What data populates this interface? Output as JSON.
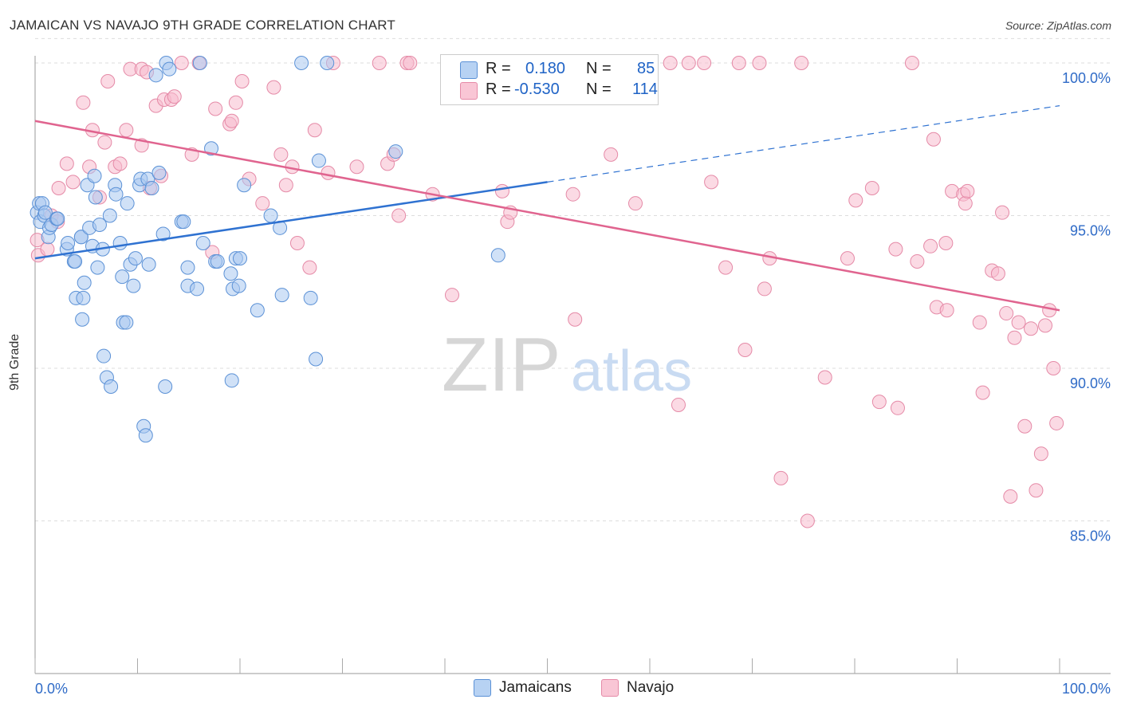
{
  "header": {
    "title": "JAMAICAN VS NAVAJO 9TH GRADE CORRELATION CHART",
    "source": "Source: ZipAtlas.com"
  },
  "watermark": {
    "zip": "ZIP",
    "atlas": "atlas"
  },
  "legend": {
    "rows": [
      {
        "r_label": "R =",
        "r_value": "0.180",
        "n_label": "N =",
        "n_value": "85",
        "color": "#a9c8f0"
      },
      {
        "r_label": "R =",
        "r_value": "-0.530",
        "n_label": "N =",
        "n_value": "114",
        "color": "#f7b7ca"
      }
    ]
  },
  "colors": {
    "jamaicans_fill": "#a9c8f0",
    "jamaicans_stroke": "#5b91d6",
    "jamaicans_line": "#2f72d1",
    "navajo_fill": "#f7bccd",
    "navajo_stroke": "#e58aa7",
    "navajo_line": "#e0648f",
    "axis_text": "#2f6bc7",
    "grid": "#dddddd"
  },
  "chart_data": {
    "type": "scatter",
    "title": "JAMAICAN VS NAVAJO 9TH GRADE CORRELATION CHART",
    "xlabel": "",
    "ylabel": "9th Grade",
    "xlim": [
      0,
      100
    ],
    "ylim": [
      80,
      100.8
    ],
    "x_tick_labels": [
      "0.0%",
      "100.0%"
    ],
    "y_ticks": [
      85,
      90,
      95,
      100
    ],
    "y_tick_labels": [
      "85.0%",
      "90.0%",
      "95.0%",
      "100.0%"
    ],
    "grid": "horizontal dashed",
    "legend_position": "top-center",
    "series": [
      {
        "name": "Jamaicans",
        "r": 0.18,
        "n": 85,
        "trend": {
          "x0": 0,
          "y0": 93.6,
          "x1": 50,
          "y1": 96.1,
          "dashed_to_x": 100,
          "dashed_to_y": 98.6
        },
        "points": [
          [
            0.2,
            95.1
          ],
          [
            0.4,
            95.4
          ],
          [
            0.5,
            94.8
          ],
          [
            0.7,
            95.4
          ],
          [
            0.9,
            95.0
          ],
          [
            1.0,
            95.1
          ],
          [
            1.3,
            94.3
          ],
          [
            1.4,
            94.6
          ],
          [
            1.6,
            94.7
          ],
          [
            2.1,
            94.9
          ],
          [
            2.2,
            94.9
          ],
          [
            3.1,
            93.9
          ],
          [
            3.2,
            94.1
          ],
          [
            3.8,
            93.5
          ],
          [
            3.9,
            93.5
          ],
          [
            4.0,
            92.3
          ],
          [
            4.5,
            94.3
          ],
          [
            4.5,
            94.3
          ],
          [
            4.6,
            91.6
          ],
          [
            4.7,
            92.3
          ],
          [
            4.8,
            92.8
          ],
          [
            5.1,
            96.0
          ],
          [
            5.3,
            94.6
          ],
          [
            5.6,
            94.0
          ],
          [
            5.8,
            96.3
          ],
          [
            5.9,
            95.6
          ],
          [
            6.1,
            93.3
          ],
          [
            6.3,
            94.7
          ],
          [
            6.6,
            93.9
          ],
          [
            6.7,
            90.4
          ],
          [
            7.0,
            89.7
          ],
          [
            7.3,
            95.0
          ],
          [
            7.4,
            89.4
          ],
          [
            7.8,
            96.0
          ],
          [
            7.9,
            95.7
          ],
          [
            8.3,
            94.1
          ],
          [
            8.5,
            93.0
          ],
          [
            8.6,
            91.5
          ],
          [
            8.9,
            91.5
          ],
          [
            9.0,
            95.4
          ],
          [
            9.3,
            93.4
          ],
          [
            9.6,
            92.7
          ],
          [
            9.8,
            93.6
          ],
          [
            10.2,
            96.0
          ],
          [
            10.3,
            96.2
          ],
          [
            10.6,
            88.1
          ],
          [
            10.8,
            87.8
          ],
          [
            11.0,
            96.2
          ],
          [
            11.1,
            93.4
          ],
          [
            11.4,
            95.9
          ],
          [
            11.8,
            99.6
          ],
          [
            12.1,
            96.4
          ],
          [
            12.5,
            94.4
          ],
          [
            12.7,
            89.4
          ],
          [
            12.8,
            100.0
          ],
          [
            13.1,
            99.8
          ],
          [
            14.3,
            94.8
          ],
          [
            14.5,
            94.8
          ],
          [
            14.9,
            93.3
          ],
          [
            14.9,
            92.7
          ],
          [
            15.8,
            92.6
          ],
          [
            16.1,
            100.0
          ],
          [
            16.4,
            94.1
          ],
          [
            17.2,
            97.2
          ],
          [
            17.6,
            93.5
          ],
          [
            17.8,
            93.5
          ],
          [
            19.1,
            93.1
          ],
          [
            19.2,
            89.6
          ],
          [
            19.3,
            92.6
          ],
          [
            19.6,
            93.6
          ],
          [
            19.9,
            92.7
          ],
          [
            20.0,
            93.6
          ],
          [
            20.4,
            96.0
          ],
          [
            21.7,
            91.9
          ],
          [
            23.0,
            95.0
          ],
          [
            23.9,
            94.6
          ],
          [
            24.1,
            92.4
          ],
          [
            26.0,
            100.0
          ],
          [
            26.9,
            92.3
          ],
          [
            27.4,
            90.3
          ],
          [
            27.7,
            96.8
          ],
          [
            28.5,
            100.0
          ],
          [
            35.2,
            97.1
          ],
          [
            40.5,
            100.0
          ],
          [
            45.2,
            93.7
          ]
        ]
      },
      {
        "name": "Navajo",
        "r": -0.53,
        "n": 114,
        "trend": {
          "x0": 0,
          "y0": 98.1,
          "x1": 100,
          "y1": 91.9
        },
        "points": [
          [
            0.2,
            94.2
          ],
          [
            0.3,
            93.7
          ],
          [
            1.2,
            93.9
          ],
          [
            1.6,
            95.0
          ],
          [
            2.2,
            94.8
          ],
          [
            2.3,
            95.9
          ],
          [
            3.1,
            96.7
          ],
          [
            3.7,
            96.1
          ],
          [
            4.7,
            98.7
          ],
          [
            5.3,
            96.6
          ],
          [
            5.6,
            97.8
          ],
          [
            6.3,
            95.6
          ],
          [
            6.8,
            97.4
          ],
          [
            7.1,
            99.4
          ],
          [
            7.8,
            96.6
          ],
          [
            8.3,
            96.7
          ],
          [
            8.9,
            97.8
          ],
          [
            9.3,
            99.8
          ],
          [
            10.4,
            97.3
          ],
          [
            10.4,
            99.8
          ],
          [
            10.9,
            99.7
          ],
          [
            11.2,
            95.9
          ],
          [
            11.8,
            98.6
          ],
          [
            12.3,
            96.3
          ],
          [
            12.6,
            98.8
          ],
          [
            13.3,
            98.8
          ],
          [
            13.6,
            98.9
          ],
          [
            14.3,
            100.0
          ],
          [
            15.3,
            97.0
          ],
          [
            16.0,
            100.0
          ],
          [
            17.3,
            93.8
          ],
          [
            17.6,
            98.5
          ],
          [
            19.0,
            98.0
          ],
          [
            19.2,
            98.1
          ],
          [
            19.6,
            98.7
          ],
          [
            20.2,
            99.4
          ],
          [
            20.9,
            96.2
          ],
          [
            22.2,
            95.4
          ],
          [
            23.3,
            99.2
          ],
          [
            24.0,
            97.0
          ],
          [
            24.5,
            96.0
          ],
          [
            25.1,
            96.6
          ],
          [
            25.6,
            94.1
          ],
          [
            26.8,
            93.3
          ],
          [
            27.3,
            97.8
          ],
          [
            28.6,
            96.4
          ],
          [
            29.1,
            100.0
          ],
          [
            31.4,
            96.6
          ],
          [
            33.6,
            100.0
          ],
          [
            34.4,
            96.7
          ],
          [
            35.0,
            97.0
          ],
          [
            35.5,
            95.0
          ],
          [
            36.3,
            100.0
          ],
          [
            36.6,
            100.0
          ],
          [
            38.8,
            95.7
          ],
          [
            40.7,
            92.4
          ],
          [
            43.6,
            100.0
          ],
          [
            45.6,
            95.8
          ],
          [
            46.1,
            94.8
          ],
          [
            46.4,
            95.1
          ],
          [
            52.5,
            95.7
          ],
          [
            52.7,
            91.6
          ],
          [
            54.2,
            100.0
          ],
          [
            56.2,
            97.0
          ],
          [
            58.6,
            95.4
          ],
          [
            62.0,
            100.0
          ],
          [
            62.8,
            88.8
          ],
          [
            63.8,
            100.0
          ],
          [
            65.3,
            100.0
          ],
          [
            66.0,
            96.1
          ],
          [
            67.4,
            93.3
          ],
          [
            68.7,
            100.0
          ],
          [
            69.3,
            90.6
          ],
          [
            70.7,
            100.0
          ],
          [
            71.2,
            92.6
          ],
          [
            71.7,
            93.6
          ],
          [
            72.8,
            86.4
          ],
          [
            74.8,
            100.0
          ],
          [
            75.4,
            85.0
          ],
          [
            77.1,
            89.7
          ],
          [
            79.3,
            93.6
          ],
          [
            80.1,
            95.5
          ],
          [
            81.7,
            95.9
          ],
          [
            82.4,
            88.9
          ],
          [
            84.0,
            93.9
          ],
          [
            84.2,
            88.7
          ],
          [
            85.6,
            100.0
          ],
          [
            86.1,
            93.5
          ],
          [
            87.4,
            94.0
          ],
          [
            87.7,
            97.5
          ],
          [
            88.0,
            92.0
          ],
          [
            88.9,
            94.1
          ],
          [
            89.0,
            91.9
          ],
          [
            89.5,
            95.8
          ],
          [
            90.6,
            95.7
          ],
          [
            90.8,
            95.4
          ],
          [
            91.0,
            95.8
          ],
          [
            92.2,
            91.5
          ],
          [
            92.5,
            89.2
          ],
          [
            93.4,
            93.2
          ],
          [
            94.0,
            93.1
          ],
          [
            94.4,
            95.1
          ],
          [
            94.8,
            91.8
          ],
          [
            95.2,
            85.8
          ],
          [
            95.6,
            91.0
          ],
          [
            96.0,
            91.5
          ],
          [
            96.6,
            88.1
          ],
          [
            97.2,
            91.3
          ],
          [
            97.7,
            86.0
          ],
          [
            98.2,
            87.2
          ],
          [
            98.6,
            91.4
          ],
          [
            99.0,
            91.9
          ],
          [
            99.4,
            90.0
          ],
          [
            99.7,
            88.2
          ]
        ]
      }
    ]
  }
}
